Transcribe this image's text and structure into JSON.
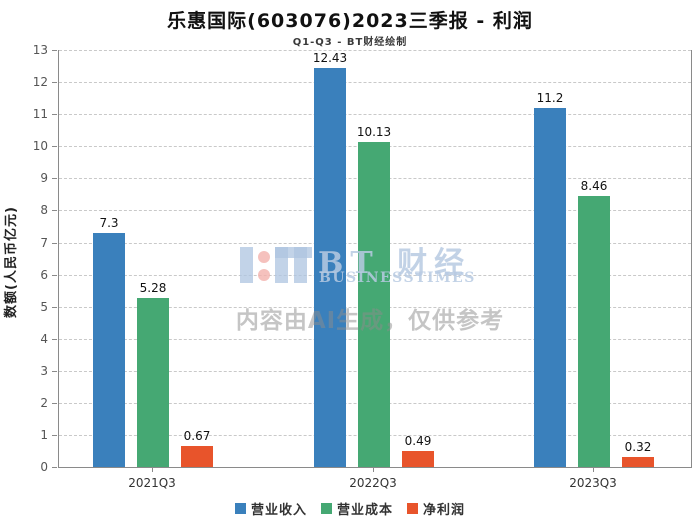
{
  "chart_data": {
    "type": "bar",
    "title": "乐惠国际(603076)2023三季报 - 利润",
    "subtitle": "Q1-Q3 - BT财经绘制",
    "categories": [
      "2021Q3",
      "2022Q3",
      "2023Q3"
    ],
    "series": [
      {
        "name": "营业收入",
        "color": "#3a80bc",
        "values": [
          7.3,
          12.43,
          11.2
        ]
      },
      {
        "name": "营业成本",
        "color": "#45a873",
        "values": [
          5.28,
          10.13,
          8.46
        ]
      },
      {
        "name": "净利润",
        "color": "#e8542b",
        "values": [
          0.67,
          0.49,
          0.32
        ]
      }
    ],
    "xlabel": "",
    "ylabel": "数额(人民币亿元)",
    "ylim": [
      0,
      13
    ],
    "ytick_step": 1,
    "grid": "horizontal-dashed",
    "legend_position": "bottom"
  },
  "watermark": {
    "logo_text": "BT 财经",
    "logo_subtext": "BUSINESSTIMES",
    "disclaimer": "内容由AI生成，仅供参考"
  }
}
